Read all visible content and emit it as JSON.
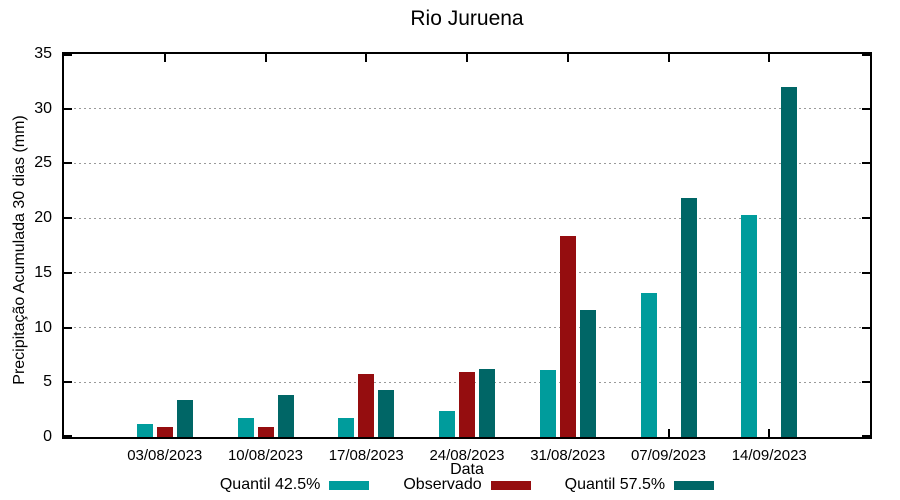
{
  "chart_data": {
    "type": "bar",
    "title": "Rio Juruena",
    "xlabel": "Data",
    "ylabel": "Precipitação Acumulada 30 dias (mm)",
    "ylim": [
      0,
      35
    ],
    "yticks": [
      0,
      5,
      10,
      15,
      20,
      25,
      30,
      35
    ],
    "grid": true,
    "grid_style": "dotted",
    "legend_position": "bottom",
    "categories": [
      "03/08/2023",
      "10/08/2023",
      "17/08/2023",
      "24/08/2023",
      "31/08/2023",
      "07/09/2023",
      "14/09/2023"
    ],
    "series": [
      {
        "name": "Quantil 42.5%",
        "color": "#009C9C",
        "values": [
          1.2,
          1.7,
          1.7,
          2.4,
          6.1,
          13.2,
          20.3
        ]
      },
      {
        "name": "Observado",
        "color": "#950D0F",
        "values": [
          0.9,
          0.9,
          5.8,
          5.9,
          18.4,
          null,
          null
        ]
      },
      {
        "name": "Quantil 57.5%",
        "color": "#006666",
        "values": [
          3.4,
          3.8,
          4.3,
          6.2,
          11.6,
          21.8,
          32.0
        ]
      }
    ]
  }
}
